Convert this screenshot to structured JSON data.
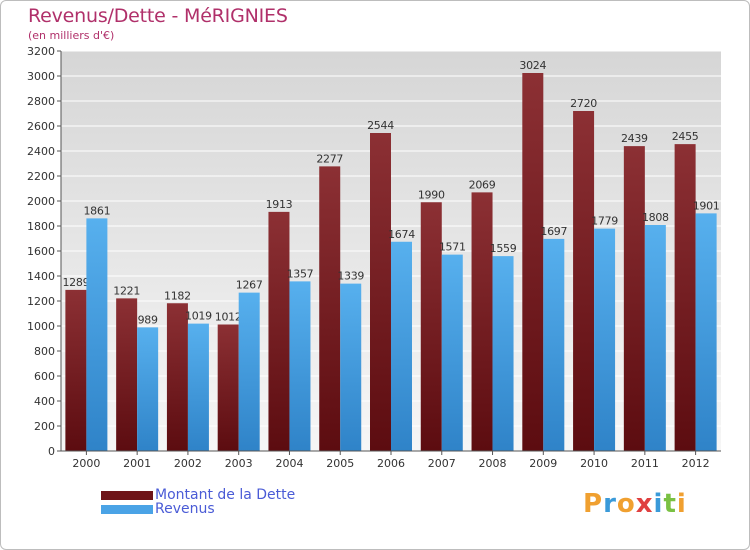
{
  "header": {
    "title": "Revenus/Dette - MéRIGNIES",
    "subtitle": "(en milliers d'€)"
  },
  "chart_data": {
    "type": "bar",
    "categories": [
      "2000",
      "2001",
      "2002",
      "2003",
      "2004",
      "2005",
      "2006",
      "2007",
      "2008",
      "2009",
      "2010",
      "2011",
      "2012"
    ],
    "series": [
      {
        "name": "Montant de la Dette",
        "color": "#7a1f23",
        "values": [
          1289,
          1221,
          1182,
          1012,
          1913,
          2277,
          2544,
          1990,
          2069,
          3024,
          2720,
          2439,
          2455
        ]
      },
      {
        "name": "Revenus",
        "color": "#4aa3e6",
        "values": [
          1861,
          989,
          1019,
          1267,
          1357,
          1339,
          1674,
          1571,
          1559,
          1697,
          1779,
          1808,
          1901
        ]
      }
    ],
    "ylim": [
      0,
      3200
    ],
    "yticks": [
      0,
      200,
      400,
      600,
      800,
      1000,
      1200,
      1400,
      1600,
      1800,
      2000,
      2200,
      2400,
      2600,
      2800,
      3000,
      3200
    ],
    "grid": true,
    "legend_position": "bottom-left"
  },
  "logo": {
    "text": "Proxiti",
    "letters": [
      "P",
      "r",
      "o",
      "x",
      "i",
      "t",
      "i"
    ],
    "colors": [
      "#f0a030",
      "#3a9ad9",
      "#f0a030",
      "#e04040",
      "#3a9ad9",
      "#7ac143",
      "#f0a030"
    ]
  }
}
